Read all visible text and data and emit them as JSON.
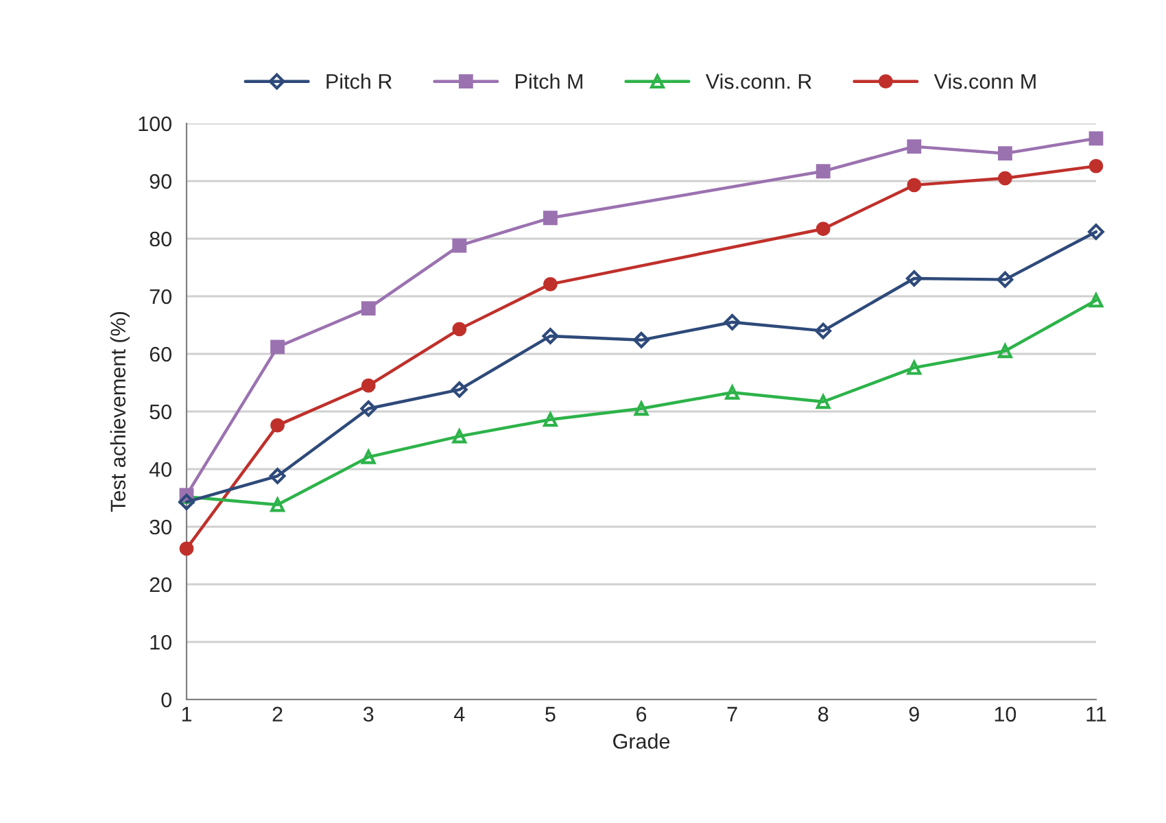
{
  "chart_data": {
    "type": "line",
    "xlabel": "Grade",
    "ylabel": "Test achievement (%)",
    "xlim": [
      1,
      11
    ],
    "xticks": [
      1,
      2,
      3,
      4,
      5,
      6,
      7,
      8,
      9,
      10,
      11
    ],
    "ylim": [
      0,
      100
    ],
    "yticks": [
      0,
      10,
      20,
      30,
      40,
      50,
      60,
      70,
      80,
      90,
      100
    ],
    "grid": "y",
    "legend": "top",
    "series": [
      {
        "name": "Pitch R",
        "color": "#2e4a7a",
        "marker": "diamond",
        "x": [
          1,
          2,
          3,
          4,
          5,
          6,
          7,
          8,
          9,
          10,
          11
        ],
        "values": [
          34.3,
          38.8,
          50.5,
          53.8,
          63.1,
          62.4,
          65.5,
          64.0,
          73.1,
          72.9,
          81.2
        ]
      },
      {
        "name": "Pitch M",
        "color": "#9b72b0",
        "marker": "square",
        "x": [
          1,
          2,
          3,
          4,
          5,
          8,
          9,
          10,
          11
        ],
        "values": [
          35.5,
          61.2,
          67.9,
          78.8,
          83.6,
          91.7,
          96.0,
          94.8,
          97.4
        ]
      },
      {
        "name": "Vis.conn. R",
        "color": "#2db34a",
        "marker": "triangle",
        "x": [
          1,
          2,
          3,
          4,
          5,
          6,
          7,
          8,
          9,
          10,
          11
        ],
        "values": [
          35.2,
          33.8,
          42.1,
          45.7,
          48.6,
          50.5,
          53.3,
          51.7,
          57.6,
          60.5,
          69.3
        ]
      },
      {
        "name": "Vis.conn M",
        "color": "#c0302b",
        "marker": "circle",
        "x": [
          1,
          2,
          3,
          4,
          5,
          8,
          9,
          10,
          11
        ],
        "values": [
          26.2,
          47.6,
          54.5,
          64.3,
          72.1,
          81.7,
          89.3,
          90.5,
          92.6
        ]
      }
    ]
  }
}
